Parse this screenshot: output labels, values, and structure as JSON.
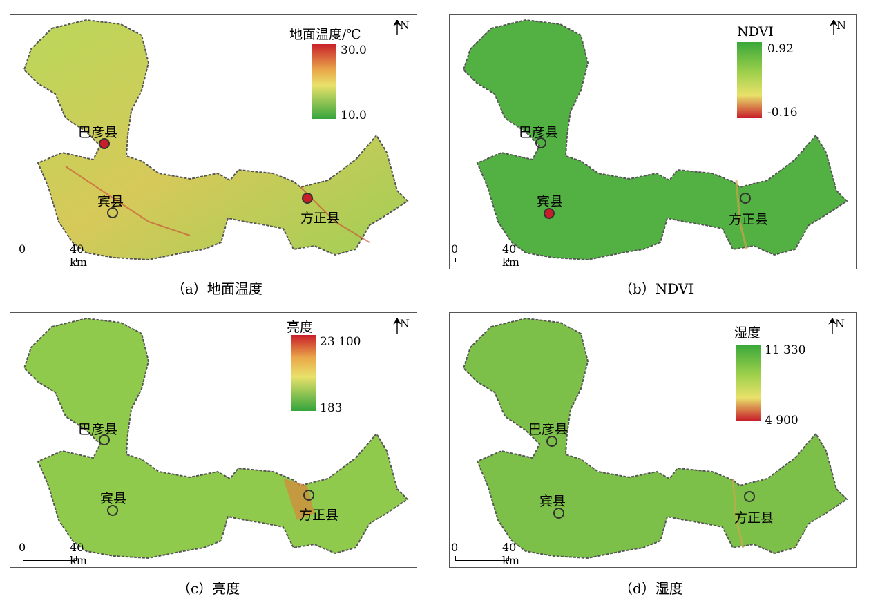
{
  "panels": [
    {
      "id": "a",
      "legend_title": "地面温度/℃",
      "legend_max": "30.0",
      "legend_min": "10.0",
      "caption": "（a）地面温度",
      "colors": {
        "top": "#c81e2a",
        "mid": "#e9e16a",
        "bottom": "#33a43c"
      }
    },
    {
      "id": "b",
      "legend_title": "NDVI",
      "legend_max": "0.92",
      "legend_min": "-0.16",
      "caption": "（b）NDVI",
      "colors": {
        "top": "#3aa83a",
        "mid": "#e9e16a",
        "bottom": "#c81e2a"
      }
    },
    {
      "id": "c",
      "legend_title": "亮度",
      "legend_max": "23 100",
      "legend_min": "183",
      "caption": "（c）亮度",
      "colors": {
        "top": "#c81e2a",
        "mid": "#e9e16a",
        "bottom": "#33a43c"
      }
    },
    {
      "id": "d",
      "legend_title": "湿度",
      "legend_max": "11 330",
      "legend_min": "4 900",
      "caption": "（d）湿度",
      "colors": {
        "top": "#3aa83a",
        "mid": "#e9e16a",
        "bottom": "#c81e2a"
      }
    }
  ],
  "cities": {
    "bayan": "巴彦县",
    "binxian": "宾县",
    "fangzheng": "方正县"
  },
  "north_label": "N",
  "scale": {
    "start": "0",
    "end": "40 km"
  }
}
